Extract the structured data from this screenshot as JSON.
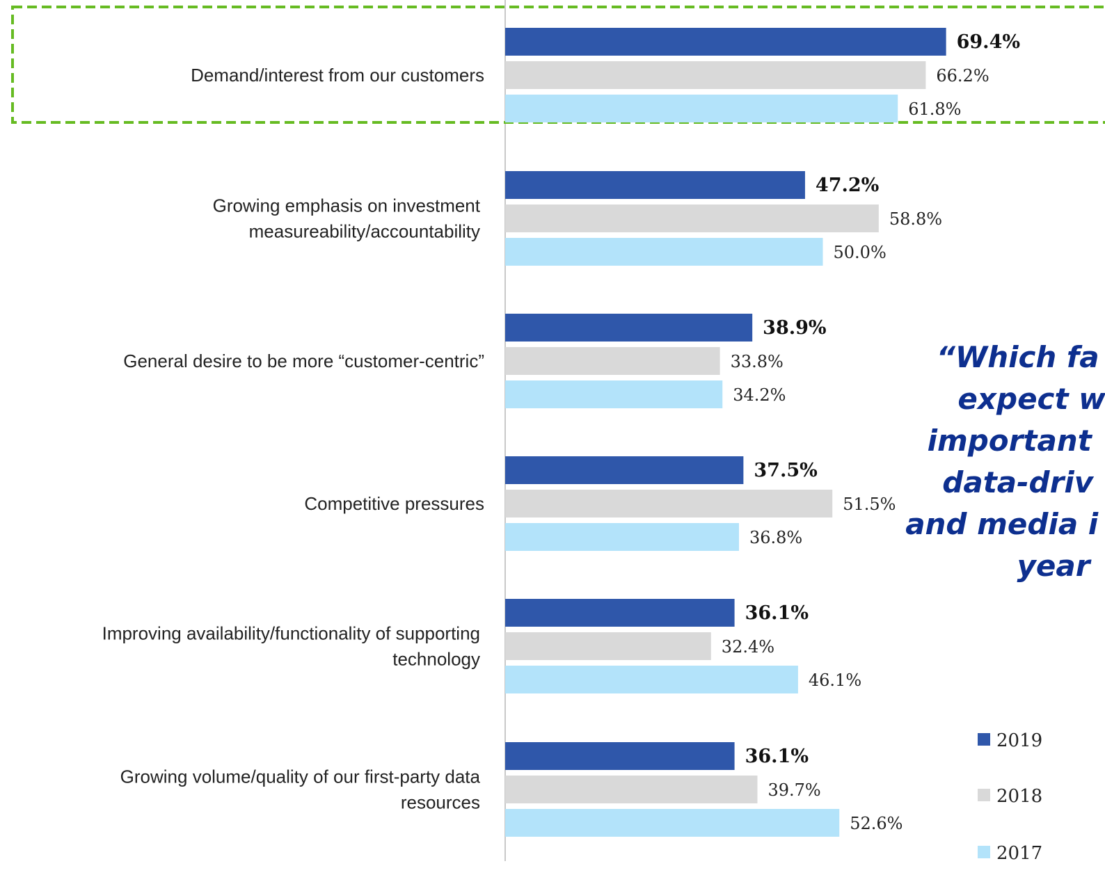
{
  "chart_data": {
    "type": "bar",
    "orientation": "horizontal",
    "categories": [
      "Demand/interest from our customers",
      "Growing emphasis on investment measureability/accountability",
      "General desire to be more “customer-centric”",
      "Competitive pressures",
      "Improving availability/functionality of supporting technology",
      "Growing volume/quality of our first-party data resources"
    ],
    "category_lines": [
      [
        "Demand/interest from our customers"
      ],
      [
        "Growing emphasis on investment",
        "measureability/accountability"
      ],
      [
        "General desire to be more “customer-centric”"
      ],
      [
        "Competitive pressures"
      ],
      [
        "Improving availability/functionality of supporting",
        "technology"
      ],
      [
        "Growing volume/quality of our first-party data",
        "resources"
      ]
    ],
    "series": [
      {
        "name": "2019",
        "color": "#2f57aa",
        "values": [
          69.4,
          47.2,
          38.9,
          37.5,
          36.1,
          36.1
        ],
        "labels": [
          "69.4%",
          "47.2%",
          "38.9%",
          "37.5%",
          "36.1%",
          "36.1%"
        ]
      },
      {
        "name": "2018",
        "color": "#d9d9d9",
        "values": [
          66.2,
          58.8,
          33.8,
          51.5,
          32.4,
          39.7
        ],
        "labels": [
          "66.2%",
          "58.8%",
          "33.8%",
          "51.5%",
          "32.4%",
          "39.7%"
        ]
      },
      {
        "name": "2017",
        "color": "#b3e3fa",
        "values": [
          61.8,
          50.0,
          34.2,
          36.8,
          46.1,
          52.6
        ],
        "labels": [
          "61.8%",
          "50.0%",
          "34.2%",
          "36.8%",
          "46.1%",
          "52.6%"
        ]
      }
    ],
    "xlim": [
      0,
      100
    ],
    "grid": false,
    "legend_position": "bottom-right",
    "highlight_category": 0,
    "highlight_color": "#66bb22",
    "annotation": {
      "lines": [
        "“Which fa",
        "expect w",
        "important",
        "data-driv",
        "and media i",
        "year"
      ],
      "color": "#0d2f8f"
    }
  }
}
